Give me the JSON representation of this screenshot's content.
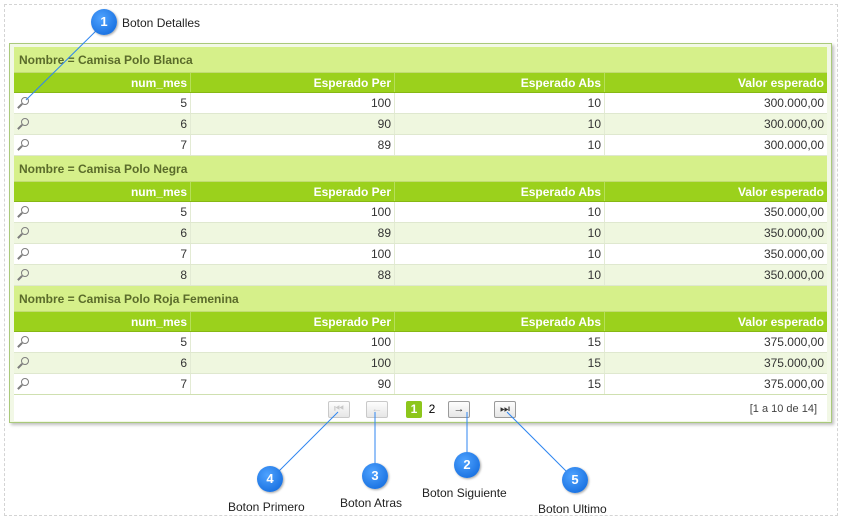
{
  "columns": [
    "num_mes",
    "Esperado Per",
    "Esperado Abs",
    "Valor esperado"
  ],
  "groups": [
    {
      "title": "Nombre = Camisa Polo Blanca",
      "rows": [
        [
          "5",
          "100",
          "10",
          "300.000,00"
        ],
        [
          "6",
          "90",
          "10",
          "300.000,00"
        ],
        [
          "7",
          "89",
          "10",
          "300.000,00"
        ]
      ]
    },
    {
      "title": "Nombre = Camisa Polo Negra",
      "rows": [
        [
          "5",
          "100",
          "10",
          "350.000,00"
        ],
        [
          "6",
          "89",
          "10",
          "350.000,00"
        ],
        [
          "7",
          "100",
          "10",
          "350.000,00"
        ],
        [
          "8",
          "88",
          "10",
          "350.000,00"
        ]
      ]
    },
    {
      "title": "Nombre = Camisa Polo Roja Femenina",
      "rows": [
        [
          "5",
          "100",
          "15",
          "375.000,00"
        ],
        [
          "6",
          "100",
          "15",
          "375.000,00"
        ],
        [
          "7",
          "90",
          "15",
          "375.000,00"
        ]
      ]
    }
  ],
  "pager": {
    "first": "⏮",
    "prev": "←",
    "next": "→",
    "last": "⏭",
    "pages": [
      "1",
      "2"
    ],
    "info": "[1 a 10 de 14]"
  },
  "callouts": [
    {
      "num": "1",
      "label": "Boton Detalles"
    },
    {
      "num": "2",
      "label": "Boton Siguiente"
    },
    {
      "num": "3",
      "label": "Boton Atras"
    },
    {
      "num": "4",
      "label": "Boton Primero"
    },
    {
      "num": "5",
      "label": "Boton Ultimo"
    }
  ],
  "colors": {
    "header": "#9bd11c",
    "group": "#d6f08a",
    "callout": "#0a63d8"
  }
}
